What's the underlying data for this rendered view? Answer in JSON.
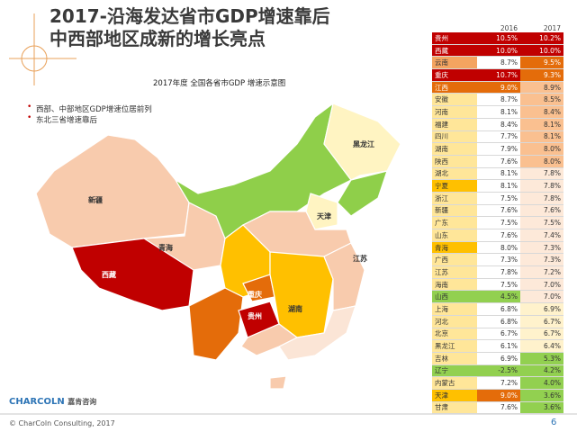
{
  "header": {
    "title_lines": [
      "2017-沿海发达省市GDP增速靠后",
      "中西部地区成新的增长亮点"
    ]
  },
  "bullets": [
    "西部、中部地区GDP增速位居前列",
    "东北三省增速靠后"
  ],
  "map": {
    "title": "2017年度 全国各省市GDP 增速示意图",
    "labels": [
      "新疆",
      "西藏",
      "青海",
      "黑龙江",
      "天津",
      "江苏",
      "重庆",
      "贵州",
      "湖南"
    ]
  },
  "table": {
    "columns": [
      "2016",
      "2017"
    ],
    "rows": [
      [
        "贵州",
        "10.5%",
        "10.2%"
      ],
      [
        "西藏",
        "10.0%",
        "10.0%"
      ],
      [
        "云南",
        "8.7%",
        "9.5%"
      ],
      [
        "重庆",
        "10.7%",
        "9.3%"
      ],
      [
        "江西",
        "9.0%",
        "8.9%"
      ],
      [
        "安徽",
        "8.7%",
        "8.5%"
      ],
      [
        "河南",
        "8.1%",
        "8.4%"
      ],
      [
        "福建",
        "8.4%",
        "8.1%"
      ],
      [
        "四川",
        "7.7%",
        "8.1%"
      ],
      [
        "湖南",
        "7.9%",
        "8.0%"
      ],
      [
        "陕西",
        "7.6%",
        "8.0%"
      ],
      [
        "湖北",
        "8.1%",
        "7.8%"
      ],
      [
        "宁夏",
        "8.1%",
        "7.8%"
      ],
      [
        "浙江",
        "7.5%",
        "7.8%"
      ],
      [
        "新疆",
        "7.6%",
        "7.6%"
      ],
      [
        "广东",
        "7.5%",
        "7.5%"
      ],
      [
        "山东",
        "7.6%",
        "7.4%"
      ],
      [
        "青海",
        "8.0%",
        "7.3%"
      ],
      [
        "广西",
        "7.3%",
        "7.3%"
      ],
      [
        "江苏",
        "7.8%",
        "7.2%"
      ],
      [
        "海南",
        "7.5%",
        "7.0%"
      ],
      [
        "山西",
        "4.5%",
        "7.0%"
      ],
      [
        "上海",
        "6.8%",
        "6.9%"
      ],
      [
        "河北",
        "6.8%",
        "6.7%"
      ],
      [
        "北京",
        "6.7%",
        "6.7%"
      ],
      [
        "黑龙江",
        "6.1%",
        "6.4%"
      ],
      [
        "吉林",
        "6.9%",
        "5.3%"
      ],
      [
        "辽宁",
        "-2.5%",
        "4.2%"
      ],
      [
        "内蒙古",
        "7.2%",
        "4.0%"
      ],
      [
        "天津",
        "9.0%",
        "3.6%"
      ],
      [
        "甘肃",
        "7.6%",
        "3.6%"
      ]
    ]
  },
  "logo": {
    "brand": "CHARCOLN",
    "cn": "嘉肯咨询"
  },
  "footer": {
    "copyright": "© CharColn Consulting, 2017",
    "page": "6"
  }
}
